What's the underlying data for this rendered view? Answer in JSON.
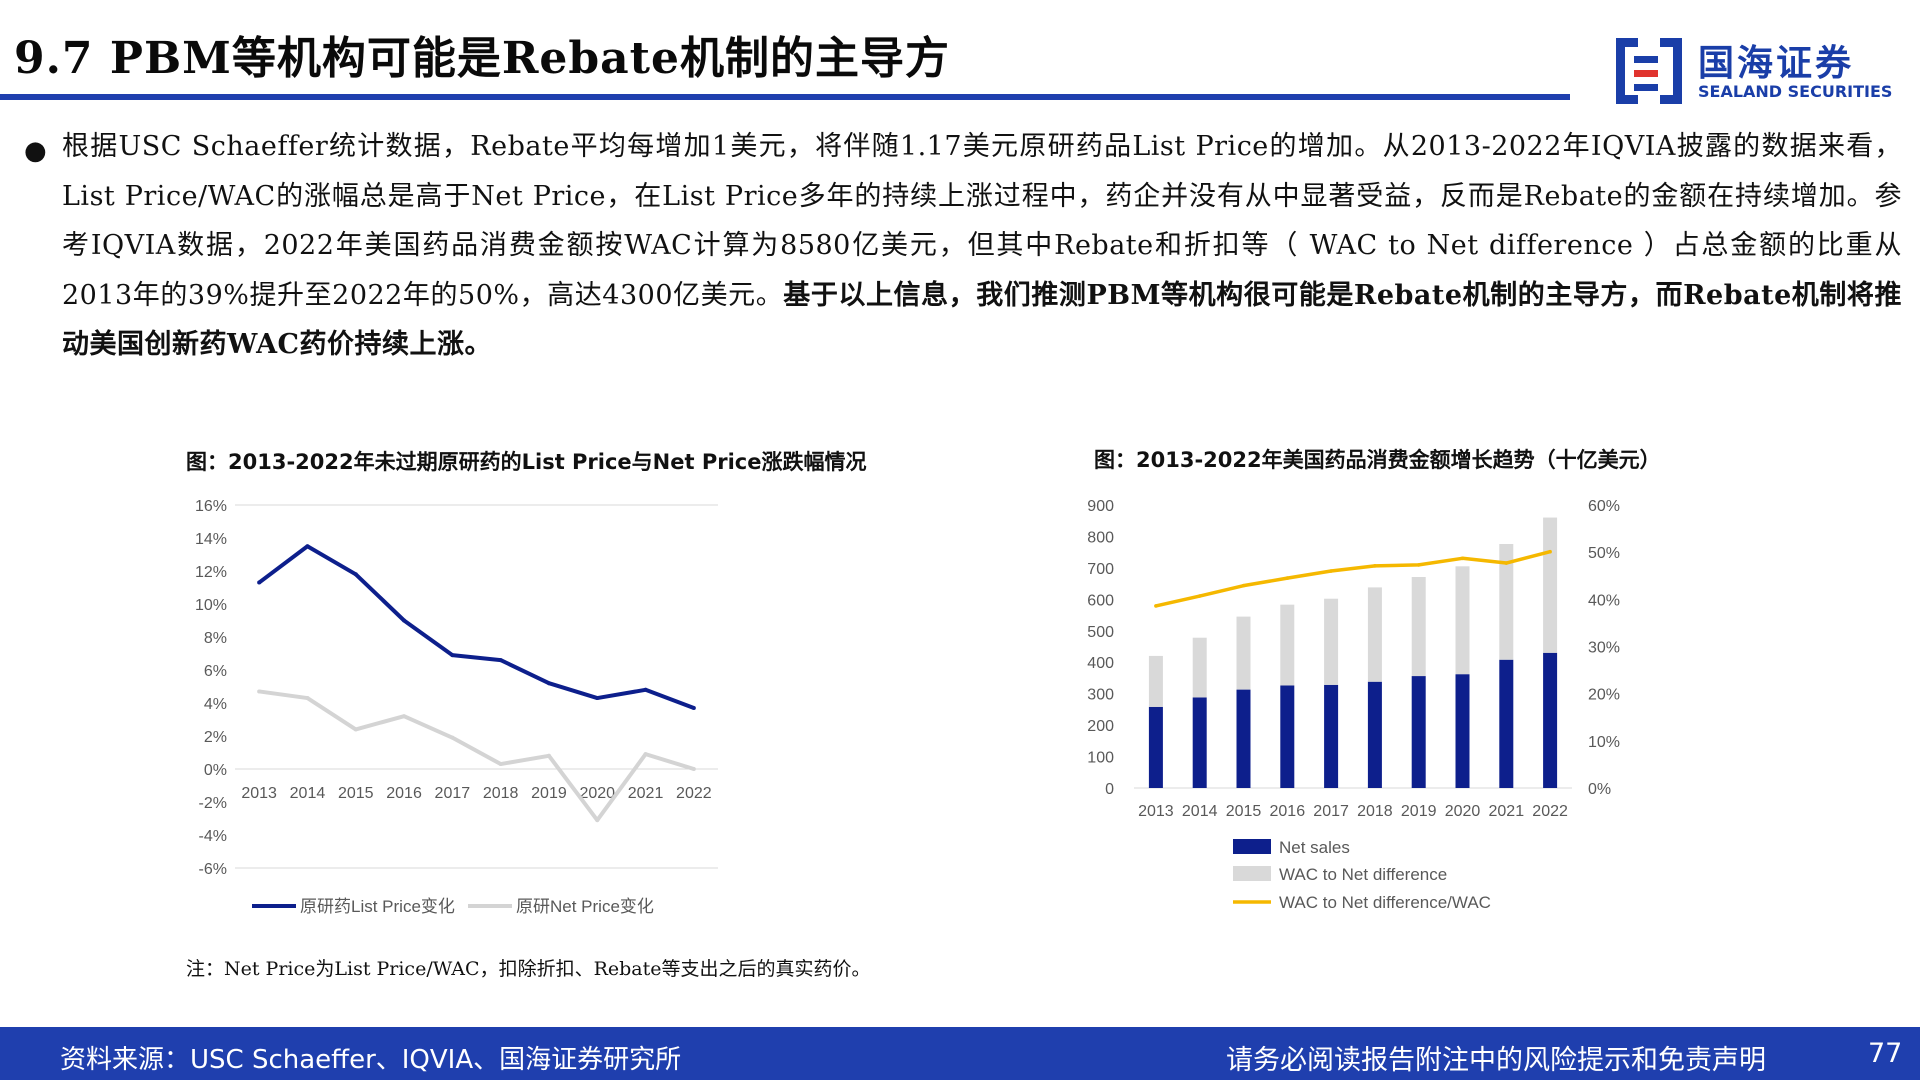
{
  "slide": {
    "title": "9.7 PBM等机构可能是Rebate机制的主导方",
    "page_number": "77"
  },
  "logo": {
    "name_cn": "国海证券",
    "name_en": "SEALAND SECURITIES",
    "color": "#1a3ea8",
    "accent": "#e0332e"
  },
  "body": {
    "normal": "根据USC Schaeffer统计数据，Rebate平均每增加1美元，将伴随1.17美元原研药品List Price的增加。从2013-2022年IQVIA披露的数据来看， List Price/WAC的涨幅总是高于Net Price，在List Price多年的持续上涨过程中，药企并没有从中显著受益，反而是Rebate的金额在持续增加。参考IQVIA数据，2022年美国药品消费金额按WAC计算为8580亿美元，但其中Rebate和折扣等（ WAC to Net difference ）占总金额的比重从2013年的39%提升至2022年的50%，高达4300亿美元。",
    "bold": "基于以上信息，我们推测PBM等机构很可能是Rebate机制的主导方，而Rebate机制将推动美国创新药WAC药价持续上涨。"
  },
  "chart_data": [
    {
      "type": "line",
      "title": "图：2013-2022年未过期原研药的List Price与Net Price涨跌幅情况",
      "x": [
        "2013",
        "2014",
        "2015",
        "2016",
        "2017",
        "2018",
        "2019",
        "2020",
        "2021",
        "2022"
      ],
      "y_ticks": [
        "16%",
        "14%",
        "12%",
        "10%",
        "8%",
        "6%",
        "4%",
        "2%",
        "0%",
        "-2%",
        "-4%",
        "-6%"
      ],
      "ylim": [
        -6,
        16
      ],
      "series": [
        {
          "name": "原研药List Price变化",
          "color": "#0d1f8c",
          "values": [
            11.3,
            13.5,
            11.8,
            9.0,
            6.9,
            6.6,
            5.2,
            4.3,
            4.8,
            3.7
          ]
        },
        {
          "name": "原研Net Price变化",
          "color": "#d4d4d4",
          "values": [
            4.7,
            4.3,
            2.4,
            3.2,
            1.9,
            0.3,
            0.8,
            -3.1,
            0.9,
            0.0
          ]
        }
      ],
      "legend": "bottom",
      "grid": false
    },
    {
      "type": "bar",
      "title": "图：2013-2022年美国药品消费金额增长趋势（十亿美元）",
      "categories": [
        "2013",
        "2014",
        "2015",
        "2016",
        "2017",
        "2018",
        "2019",
        "2020",
        "2021",
        "2022"
      ],
      "y_ticks_left": [
        "900",
        "800",
        "700",
        "600",
        "500",
        "400",
        "300",
        "200",
        "100",
        "0"
      ],
      "y_ticks_right": [
        "60%",
        "50%",
        "40%",
        "30%",
        "20%",
        "10%",
        "0%"
      ],
      "ylim": [
        0,
        900
      ],
      "ylim_right": [
        0,
        60
      ],
      "stacked": true,
      "series": [
        {
          "name": "Net sales",
          "color": "#0d1f8c",
          "values": [
            258,
            288,
            313,
            326,
            328,
            338,
            356,
            362,
            408,
            430
          ]
        },
        {
          "name": "WAC to Net difference",
          "color": "#d9d9d9",
          "values": [
            162,
            190,
            232,
            257,
            274,
            300,
            315,
            343,
            368,
            430
          ]
        },
        {
          "name": "WAC to Net difference/WAC",
          "color": "#f5b800",
          "axis": "right",
          "values": [
            38.6,
            40.7,
            42.9,
            44.5,
            46.0,
            47.1,
            47.3,
            48.7,
            47.7,
            50.1
          ]
        }
      ],
      "legend": "bottom",
      "grid": false
    }
  ],
  "note": "注：Net Price为List Price/WAC，扣除折扣、Rebate等支出之后的真实药价。",
  "footer": {
    "source": "资料来源：USC Schaeffer、IQVIA、国海证券研究所",
    "disclaimer": "请务必阅读报告附注中的风险提示和免责声明"
  }
}
